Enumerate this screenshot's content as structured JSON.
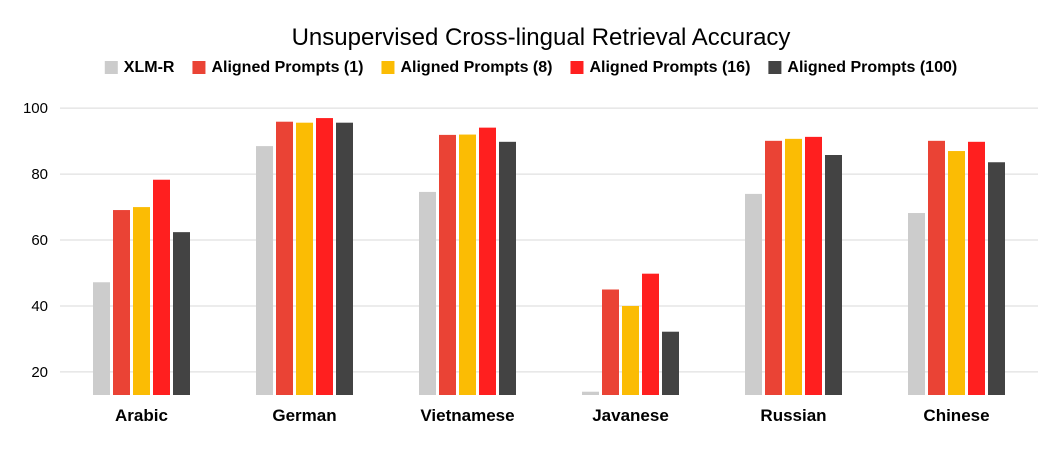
{
  "chart_data": {
    "type": "bar",
    "title": "Unsupervised Cross-lingual Retrieval Accuracy",
    "xlabel": "",
    "ylabel": "",
    "categories": [
      "Arabic",
      "German",
      "Vietnamese",
      "Javanese",
      "Russian",
      "Chinese"
    ],
    "yticks": [
      20,
      40,
      60,
      80,
      100
    ],
    "ylim": [
      13,
      104
    ],
    "grid": true,
    "legend_position": "top",
    "series": [
      {
        "name": "XLM-R",
        "color": "#cccccc",
        "values": [
          47.2,
          88.5,
          74.6,
          14.0,
          74.0,
          68.2
        ]
      },
      {
        "name": "Aligned Prompts (1)",
        "color": "#ea4335",
        "values": [
          69.1,
          95.9,
          91.9,
          45.0,
          90.1,
          90.1
        ]
      },
      {
        "name": "Aligned Prompts (8)",
        "color": "#fbbc04",
        "values": [
          70.0,
          95.6,
          92.0,
          40.0,
          90.7,
          87.0
        ]
      },
      {
        "name": "Aligned Prompts (16)",
        "color": "#ff1f1f",
        "values": [
          78.3,
          97.0,
          94.1,
          49.8,
          91.3,
          89.8
        ]
      },
      {
        "name": "Aligned Prompts (100)",
        "color": "#434343",
        "values": [
          62.4,
          95.6,
          89.8,
          32.2,
          85.8,
          83.6
        ]
      }
    ]
  }
}
